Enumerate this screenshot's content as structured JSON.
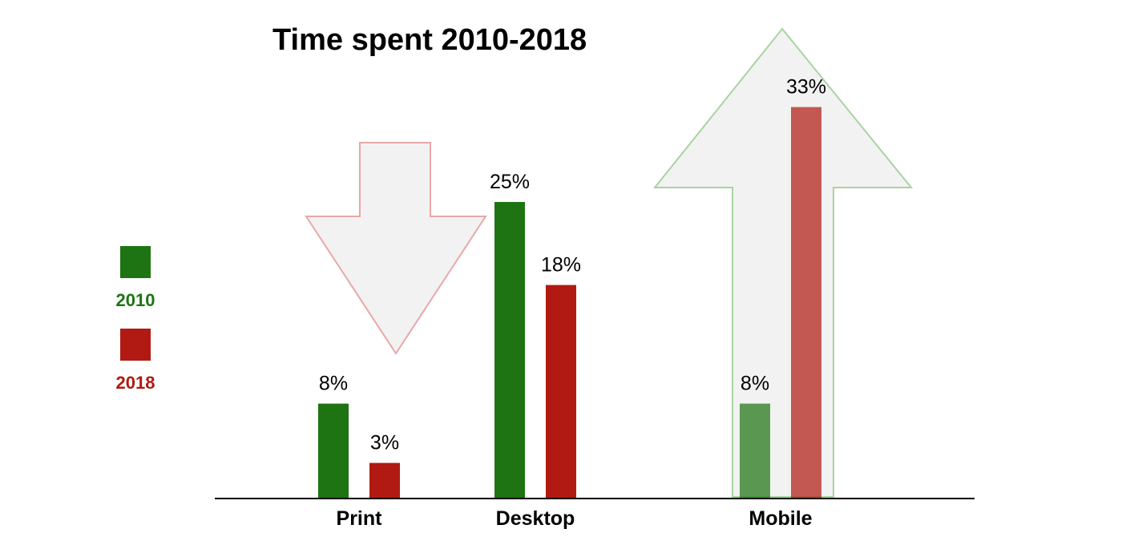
{
  "chart_data": {
    "type": "bar",
    "title": "Time spent 2010-2018",
    "xlabel": "",
    "ylabel": "",
    "ylim": [
      0,
      35
    ],
    "grid": false,
    "legend_placement": "left",
    "categories": [
      "Print",
      "Desktop",
      "Mobile"
    ],
    "series": [
      {
        "name": "2010",
        "color": "#1e7412",
        "values": [
          8,
          25,
          8
        ],
        "labels": [
          "8%",
          "25%",
          "8%"
        ]
      },
      {
        "name": "2018",
        "color": "#b01a12",
        "values": [
          3,
          18,
          33
        ],
        "labels": [
          "3%",
          "18%",
          "33%"
        ]
      }
    ],
    "annotations": [
      {
        "type": "down-arrow",
        "category": "Print",
        "border_color": "#e8a8a8",
        "fill_color": "#f2f2f2"
      },
      {
        "type": "up-arrow",
        "category": "Mobile",
        "border_color": "#a8d4a0",
        "fill_color": "#f2f2f2"
      }
    ]
  }
}
